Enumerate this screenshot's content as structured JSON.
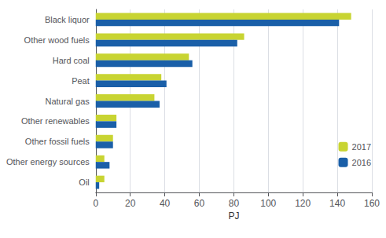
{
  "chart_data": {
    "type": "bar",
    "orientation": "horizontal",
    "categories": [
      "Black liquor",
      "Other wood fuels",
      "Hard coal",
      "Peat",
      "Natural gas",
      "Other renewables",
      "Other fossil fuels",
      "Other energy sources",
      "Oil"
    ],
    "series": [
      {
        "name": "2017",
        "color": "#c8d432",
        "values": [
          148,
          86,
          54,
          38,
          34,
          12,
          10,
          5,
          5
        ]
      },
      {
        "name": "2016",
        "color": "#1a5fa8",
        "values": [
          141,
          82,
          56,
          41,
          37,
          12,
          10,
          8,
          2
        ]
      }
    ],
    "xlabel": "PJ",
    "xlim": [
      0,
      160
    ],
    "xticks": [
      0,
      20,
      40,
      60,
      80,
      100,
      120,
      140,
      160
    ],
    "grid": true,
    "legend": "right"
  }
}
